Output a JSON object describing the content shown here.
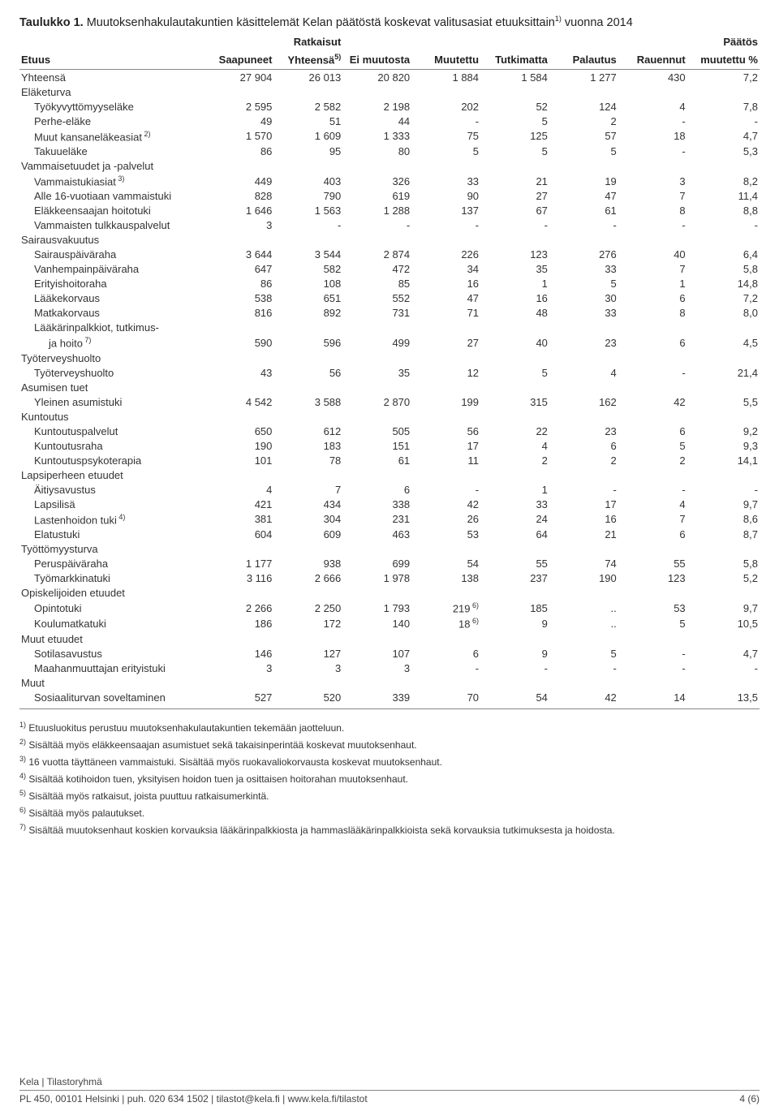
{
  "title_prefix": "Taulukko 1.",
  "title_rest": " Muutoksenhakulautakuntien käsittelemät Kelan päätöstä koskevat valitusasiat etuuksittain",
  "title_sup": "1)",
  "title_tail": " vuonna 2014",
  "columns": [
    {
      "label": "Etuus",
      "align": "left"
    },
    {
      "label": "Saapuneet"
    },
    {
      "label": "Ratkaisut",
      "sub": "Yhteensä",
      "sup": "5)"
    },
    {
      "label": "Ei muutosta"
    },
    {
      "label": "Muutettu"
    },
    {
      "label": "Tutkimatta"
    },
    {
      "label": "Palautus"
    },
    {
      "label": "Rauennut"
    },
    {
      "label": "Päätös",
      "sub": "muutettu %"
    }
  ],
  "rows": [
    {
      "t": "row",
      "label": "Yhteensä",
      "v": [
        "27 904",
        "26 013",
        "20 820",
        "1 884",
        "1 584",
        "1 277",
        "430",
        "7,2"
      ]
    },
    {
      "t": "section",
      "label": "Eläketurva"
    },
    {
      "t": "row",
      "indent": 1,
      "label": "Työkyvyttömyyseläke",
      "v": [
        "2 595",
        "2 582",
        "2 198",
        "202",
        "52",
        "124",
        "4",
        "7,8"
      ]
    },
    {
      "t": "row",
      "indent": 1,
      "label": "Perhe-eläke",
      "v": [
        "49",
        "51",
        "44",
        "-",
        "5",
        "2",
        "-",
        "-"
      ]
    },
    {
      "t": "row",
      "indent": 1,
      "label": "Muut kansaneläkeasiat",
      "sup": "2)",
      "v": [
        "1 570",
        "1 609",
        "1 333",
        "75",
        "125",
        "57",
        "18",
        "4,7"
      ]
    },
    {
      "t": "row",
      "indent": 1,
      "label": "Takuueläke",
      "v": [
        "86",
        "95",
        "80",
        "5",
        "5",
        "5",
        "-",
        "5,3"
      ]
    },
    {
      "t": "section",
      "label": "Vammaisetuudet ja -palvelut"
    },
    {
      "t": "row",
      "indent": 1,
      "label": "Vammaistukiasiat",
      "sup": "3)",
      "v": [
        "449",
        "403",
        "326",
        "33",
        "21",
        "19",
        "3",
        "8,2"
      ]
    },
    {
      "t": "row",
      "indent": 1,
      "label": "Alle 16-vuotiaan vammaistuki",
      "v": [
        "828",
        "790",
        "619",
        "90",
        "27",
        "47",
        "7",
        "11,4"
      ]
    },
    {
      "t": "row",
      "indent": 1,
      "label": "Eläkkeensaajan hoitotuki",
      "v": [
        "1 646",
        "1 563",
        "1 288",
        "137",
        "67",
        "61",
        "8",
        "8,8"
      ]
    },
    {
      "t": "row",
      "indent": 1,
      "label": "Vammaisten tulkkauspalvelut",
      "v": [
        "3",
        "-",
        "-",
        "-",
        "-",
        "-",
        "-",
        "-"
      ]
    },
    {
      "t": "section",
      "label": "Sairausvakuutus"
    },
    {
      "t": "row",
      "indent": 1,
      "label": "Sairauspäiväraha",
      "v": [
        "3 644",
        "3 544",
        "2 874",
        "226",
        "123",
        "276",
        "40",
        "6,4"
      ]
    },
    {
      "t": "row",
      "indent": 1,
      "label": "Vanhempainpäiväraha",
      "v": [
        "647",
        "582",
        "472",
        "34",
        "35",
        "33",
        "7",
        "5,8"
      ]
    },
    {
      "t": "row",
      "indent": 1,
      "label": "Erityishoitoraha",
      "v": [
        "86",
        "108",
        "85",
        "16",
        "1",
        "5",
        "1",
        "14,8"
      ]
    },
    {
      "t": "row",
      "indent": 1,
      "label": "Lääkekorvaus",
      "v": [
        "538",
        "651",
        "552",
        "47",
        "16",
        "30",
        "6",
        "7,2"
      ]
    },
    {
      "t": "row",
      "indent": 1,
      "label": "Matkakorvaus",
      "v": [
        "816",
        "892",
        "731",
        "71",
        "48",
        "33",
        "8",
        "8,0"
      ]
    },
    {
      "t": "labelonly",
      "indent": 1,
      "label": "Lääkärinpalkkiot, tutkimus-"
    },
    {
      "t": "row",
      "indent": 2,
      "label": "ja hoito",
      "sup": "7)",
      "v": [
        "590",
        "596",
        "499",
        "27",
        "40",
        "23",
        "6",
        "4,5"
      ]
    },
    {
      "t": "section",
      "label": "Työterveyshuolto"
    },
    {
      "t": "row",
      "indent": 1,
      "label": "Työterveyshuolto",
      "v": [
        "43",
        "56",
        "35",
        "12",
        "5",
        "4",
        "-",
        "21,4"
      ]
    },
    {
      "t": "section",
      "label": "Asumisen tuet"
    },
    {
      "t": "row",
      "indent": 1,
      "label": "Yleinen asumistuki",
      "v": [
        "4 542",
        "3 588",
        "2 870",
        "199",
        "315",
        "162",
        "42",
        "5,5"
      ]
    },
    {
      "t": "section",
      "label": "Kuntoutus"
    },
    {
      "t": "row",
      "indent": 1,
      "label": "Kuntoutuspalvelut",
      "v": [
        "650",
        "612",
        "505",
        "56",
        "22",
        "23",
        "6",
        "9,2"
      ]
    },
    {
      "t": "row",
      "indent": 1,
      "label": "Kuntoutusraha",
      "v": [
        "190",
        "183",
        "151",
        "17",
        "4",
        "6",
        "5",
        "9,3"
      ]
    },
    {
      "t": "row",
      "indent": 1,
      "label": "Kuntoutuspsykoterapia",
      "v": [
        "101",
        "78",
        "61",
        "11",
        "2",
        "2",
        "2",
        "14,1"
      ]
    },
    {
      "t": "section",
      "label": "Lapsiperheen etuudet"
    },
    {
      "t": "row",
      "indent": 1,
      "label": "Äitiysavustus",
      "v": [
        "4",
        "7",
        "6",
        "-",
        "1",
        "-",
        "-",
        "-"
      ]
    },
    {
      "t": "row",
      "indent": 1,
      "label": "Lapsilisä",
      "v": [
        "421",
        "434",
        "338",
        "42",
        "33",
        "17",
        "4",
        "9,7"
      ]
    },
    {
      "t": "row",
      "indent": 1,
      "label": "Lastenhoidon tuki",
      "sup": "4)",
      "v": [
        "381",
        "304",
        "231",
        "26",
        "24",
        "16",
        "7",
        "8,6"
      ]
    },
    {
      "t": "row",
      "indent": 1,
      "label": "Elatustuki",
      "v": [
        "604",
        "609",
        "463",
        "53",
        "64",
        "21",
        "6",
        "8,7"
      ]
    },
    {
      "t": "section",
      "label": "Työttömyysturva"
    },
    {
      "t": "row",
      "indent": 1,
      "label": "Peruspäiväraha",
      "v": [
        "1 177",
        "938",
        "699",
        "54",
        "55",
        "74",
        "55",
        "5,8"
      ]
    },
    {
      "t": "row",
      "indent": 1,
      "label": "Työmarkkinatuki",
      "v": [
        "3 116",
        "2 666",
        "1 978",
        "138",
        "237",
        "190",
        "123",
        "5,2"
      ]
    },
    {
      "t": "section",
      "label": "Opiskelijoiden etuudet"
    },
    {
      "t": "row",
      "indent": 1,
      "label": "Opintotuki",
      "v": [
        "2 266",
        "2 250",
        "1 793",
        "219",
        "185",
        "..",
        "53",
        "9,7"
      ],
      "cellsup": {
        "3": "6)"
      }
    },
    {
      "t": "row",
      "indent": 1,
      "label": "Koulumatkatuki",
      "v": [
        "186",
        "172",
        "140",
        "18",
        "9",
        "..",
        "5",
        "10,5"
      ],
      "cellsup": {
        "3": "6)"
      }
    },
    {
      "t": "section",
      "label": "Muut etuudet"
    },
    {
      "t": "row",
      "indent": 1,
      "label": "Sotilasavustus",
      "v": [
        "146",
        "127",
        "107",
        "6",
        "9",
        "5",
        "-",
        "4,7"
      ]
    },
    {
      "t": "row",
      "indent": 1,
      "label": "Maahanmuuttajan erityistuki",
      "v": [
        "3",
        "3",
        "3",
        "-",
        "-",
        "-",
        "-",
        "-"
      ]
    },
    {
      "t": "section",
      "label": "Muut"
    },
    {
      "t": "row",
      "indent": 1,
      "label": "Sosiaaliturvan soveltaminen",
      "v": [
        "527",
        "520",
        "339",
        "70",
        "54",
        "42",
        "14",
        "13,5"
      ]
    }
  ],
  "footnotes": [
    {
      "sup": "1)",
      "text": "Etuusluokitus perustuu muutoksenhakulautakuntien tekemään jaotteluun."
    },
    {
      "sup": "2)",
      "text": "Sisältää myös eläkkeensaajan asumistuet sekä takaisinperintää koskevat muutoksenhaut."
    },
    {
      "sup": "3)",
      "text": "16 vuotta täyttäneen vammaistuki. Sisältää myös ruokavaliokorvausta koskevat muutoksenhaut."
    },
    {
      "sup": "4)",
      "text": "Sisältää kotihoidon tuen, yksityisen hoidon tuen ja osittaisen hoitorahan muutoksenhaut."
    },
    {
      "sup": "5)",
      "text": "Sisältää myös ratkaisut, joista puuttuu ratkaisumerkintä."
    },
    {
      "sup": "6)",
      "text": "Sisältää myös palautukset."
    },
    {
      "sup": "7)",
      "text": "Sisältää muutoksenhaut koskien korvauksia lääkärinpalkkiosta ja hammaslääkärinpalkkioista sekä korvauksia tutkimuksesta ja hoidosta."
    }
  ],
  "footer": {
    "line1": "Kela | Tilastoryhmä",
    "line2_left": "PL 450, 00101 Helsinki | puh. 020 634 1502 | tilastot@kela.fi | www.kela.fi/tilastot",
    "line2_right": "4 (6)"
  },
  "colors": {
    "text": "#333333",
    "border": "#888888",
    "bg": "#ffffff"
  }
}
